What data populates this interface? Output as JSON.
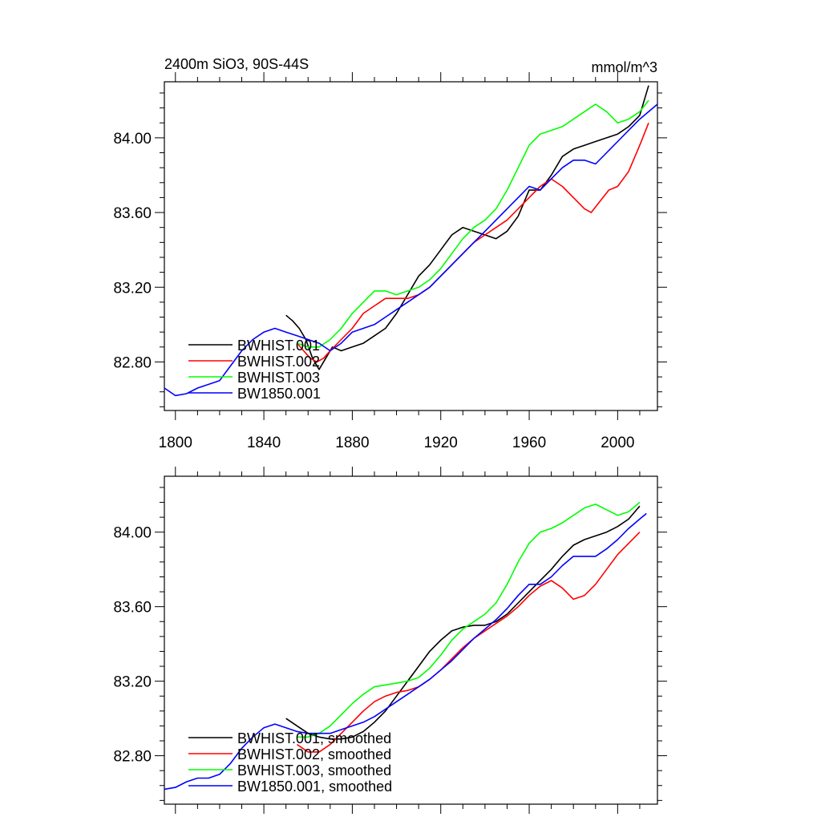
{
  "chart_data": [
    {
      "type": "line",
      "title": "2400m SiO3, 90S-44S",
      "units": "mmol/m^3",
      "xlim": [
        1795,
        2018
      ],
      "ylim": [
        82.54,
        84.3
      ],
      "x_ticks": [
        "1800",
        "1840",
        "1880",
        "1920",
        "1960",
        "2000"
      ],
      "y_ticks": [
        "82.80",
        "83.20",
        "83.60",
        "84.00"
      ],
      "legend_position": "lower-left",
      "series": [
        {
          "name": "BWHIST.001",
          "color": "#000000",
          "x": [
            1850,
            1853,
            1856,
            1859,
            1862,
            1865,
            1868,
            1871,
            1875,
            1880,
            1885,
            1890,
            1895,
            1900,
            1905,
            1910,
            1915,
            1920,
            1925,
            1930,
            1935,
            1940,
            1945,
            1950,
            1955,
            1960,
            1965,
            1970,
            1975,
            1980,
            1985,
            1990,
            1995,
            2000,
            2005,
            2010,
            2014
          ],
          "y": [
            83.05,
            83.02,
            82.98,
            82.92,
            82.82,
            82.76,
            82.82,
            82.88,
            82.86,
            82.88,
            82.9,
            82.94,
            82.98,
            83.06,
            83.16,
            83.26,
            83.32,
            83.4,
            83.48,
            83.52,
            83.5,
            83.48,
            83.46,
            83.5,
            83.58,
            83.72,
            83.72,
            83.8,
            83.9,
            83.94,
            83.96,
            83.98,
            84.0,
            84.02,
            84.06,
            84.12,
            84.28
          ]
        },
        {
          "name": "BWHIST.002",
          "color": "#ff0000",
          "x": [
            1855,
            1858,
            1861,
            1864,
            1867,
            1870,
            1875,
            1880,
            1885,
            1890,
            1895,
            1900,
            1905,
            1910,
            1915,
            1920,
            1925,
            1930,
            1935,
            1940,
            1945,
            1950,
            1955,
            1960,
            1965,
            1970,
            1975,
            1980,
            1985,
            1988,
            1992,
            1996,
            2000,
            2005,
            2010,
            2014
          ],
          "y": [
            82.9,
            82.86,
            82.82,
            82.8,
            82.82,
            82.86,
            82.92,
            82.98,
            83.06,
            83.1,
            83.14,
            83.14,
            83.14,
            83.16,
            83.2,
            83.26,
            83.32,
            83.38,
            83.44,
            83.48,
            83.52,
            83.56,
            83.62,
            83.68,
            83.74,
            83.78,
            83.74,
            83.68,
            83.62,
            83.6,
            83.66,
            83.72,
            83.74,
            83.82,
            83.96,
            84.08
          ]
        },
        {
          "name": "BWHIST.003",
          "color": "#00ff00",
          "x": [
            1855,
            1860,
            1865,
            1870,
            1875,
            1880,
            1885,
            1890,
            1895,
            1900,
            1905,
            1910,
            1915,
            1920,
            1925,
            1930,
            1935,
            1940,
            1945,
            1950,
            1955,
            1960,
            1965,
            1970,
            1975,
            1980,
            1985,
            1990,
            1995,
            2000,
            2005,
            2010,
            2014
          ],
          "y": [
            82.9,
            82.88,
            82.88,
            82.92,
            82.98,
            83.06,
            83.12,
            83.18,
            83.18,
            83.16,
            83.18,
            83.2,
            83.24,
            83.3,
            83.38,
            83.46,
            83.52,
            83.56,
            83.62,
            83.72,
            83.84,
            83.96,
            84.02,
            84.04,
            84.06,
            84.1,
            84.14,
            84.18,
            84.14,
            84.08,
            84.1,
            84.14,
            84.2
          ]
        },
        {
          "name": "BW1850.001",
          "color": "#0000ff",
          "x": [
            1795,
            1800,
            1805,
            1810,
            1815,
            1820,
            1825,
            1830,
            1835,
            1840,
            1845,
            1850,
            1855,
            1860,
            1865,
            1870,
            1875,
            1880,
            1885,
            1890,
            1895,
            1900,
            1905,
            1910,
            1915,
            1920,
            1925,
            1930,
            1935,
            1940,
            1945,
            1950,
            1955,
            1960,
            1965,
            1970,
            1975,
            1980,
            1985,
            1990,
            1995,
            2000,
            2005,
            2010,
            2018
          ],
          "y": [
            82.66,
            82.62,
            82.63,
            82.66,
            82.68,
            82.7,
            82.78,
            82.86,
            82.92,
            82.96,
            82.98,
            82.96,
            82.94,
            82.92,
            82.9,
            82.86,
            82.9,
            82.96,
            82.98,
            83.0,
            83.04,
            83.08,
            83.12,
            83.16,
            83.2,
            83.26,
            83.32,
            83.38,
            83.44,
            83.5,
            83.56,
            83.62,
            83.68,
            83.74,
            83.72,
            83.78,
            83.84,
            83.88,
            83.88,
            83.86,
            83.92,
            83.98,
            84.04,
            84.1,
            84.18
          ]
        }
      ]
    },
    {
      "type": "line",
      "xlim": [
        1795,
        2018
      ],
      "ylim": [
        82.54,
        84.3
      ],
      "y_ticks": [
        "82.80",
        "83.20",
        "83.60",
        "84.00"
      ],
      "legend_position": "lower-left",
      "series": [
        {
          "name": "BWHIST.001, smoothed",
          "color": "#000000",
          "x": [
            1850,
            1855,
            1860,
            1865,
            1870,
            1875,
            1880,
            1885,
            1890,
            1895,
            1900,
            1905,
            1910,
            1915,
            1920,
            1925,
            1930,
            1935,
            1940,
            1945,
            1950,
            1955,
            1960,
            1965,
            1970,
            1975,
            1980,
            1985,
            1990,
            1995,
            2000,
            2005,
            2010
          ],
          "y": [
            83.0,
            82.96,
            82.92,
            82.9,
            82.89,
            82.89,
            82.9,
            82.93,
            82.98,
            83.04,
            83.12,
            83.2,
            83.28,
            83.36,
            83.42,
            83.47,
            83.49,
            83.5,
            83.5,
            83.52,
            83.56,
            83.62,
            83.68,
            83.74,
            83.8,
            83.87,
            83.93,
            83.96,
            83.98,
            84.0,
            84.03,
            84.07,
            84.14
          ]
        },
        {
          "name": "BWHIST.002, smoothed",
          "color": "#ff0000",
          "x": [
            1855,
            1860,
            1865,
            1870,
            1875,
            1880,
            1885,
            1890,
            1895,
            1900,
            1905,
            1910,
            1915,
            1920,
            1925,
            1930,
            1935,
            1940,
            1945,
            1950,
            1955,
            1960,
            1965,
            1970,
            1975,
            1980,
            1985,
            1990,
            1995,
            2000,
            2005,
            2010
          ],
          "y": [
            82.86,
            82.82,
            82.82,
            82.86,
            82.92,
            82.98,
            83.04,
            83.09,
            83.12,
            83.14,
            83.15,
            83.17,
            83.21,
            83.26,
            83.32,
            83.38,
            83.43,
            83.47,
            83.51,
            83.55,
            83.6,
            83.66,
            83.71,
            83.74,
            83.7,
            83.64,
            83.66,
            83.72,
            83.8,
            83.88,
            83.94,
            84.0
          ]
        },
        {
          "name": "BWHIST.003, smoothed",
          "color": "#00ff00",
          "x": [
            1855,
            1860,
            1865,
            1870,
            1875,
            1880,
            1885,
            1890,
            1895,
            1900,
            1905,
            1910,
            1915,
            1920,
            1925,
            1930,
            1935,
            1940,
            1945,
            1950,
            1955,
            1960,
            1965,
            1970,
            1975,
            1980,
            1985,
            1990,
            1995,
            2000,
            2005,
            2010
          ],
          "y": [
            82.9,
            82.9,
            82.92,
            82.96,
            83.02,
            83.08,
            83.13,
            83.17,
            83.18,
            83.19,
            83.2,
            83.22,
            83.27,
            83.34,
            83.42,
            83.48,
            83.52,
            83.56,
            83.62,
            83.72,
            83.84,
            83.94,
            84.0,
            84.02,
            84.05,
            84.09,
            84.13,
            84.15,
            84.12,
            84.09,
            84.11,
            84.16
          ]
        },
        {
          "name": "BW1850.001, smoothed",
          "color": "#0000ff",
          "x": [
            1795,
            1800,
            1805,
            1810,
            1815,
            1820,
            1825,
            1830,
            1835,
            1840,
            1845,
            1850,
            1855,
            1860,
            1865,
            1870,
            1875,
            1880,
            1885,
            1890,
            1895,
            1900,
            1905,
            1910,
            1915,
            1920,
            1925,
            1930,
            1935,
            1940,
            1945,
            1950,
            1955,
            1960,
            1965,
            1970,
            1975,
            1980,
            1985,
            1990,
            1995,
            2000,
            2005,
            2010,
            2013
          ],
          "y": [
            82.62,
            82.63,
            82.66,
            82.68,
            82.68,
            82.7,
            82.76,
            82.84,
            82.9,
            82.95,
            82.97,
            82.95,
            82.93,
            82.92,
            82.92,
            82.92,
            82.94,
            82.96,
            82.98,
            83.01,
            83.05,
            83.09,
            83.13,
            83.17,
            83.21,
            83.26,
            83.31,
            83.37,
            83.43,
            83.48,
            83.53,
            83.59,
            83.66,
            83.72,
            83.72,
            83.76,
            83.82,
            83.87,
            83.87,
            83.87,
            83.91,
            83.96,
            84.02,
            84.07,
            84.1
          ]
        }
      ]
    }
  ]
}
